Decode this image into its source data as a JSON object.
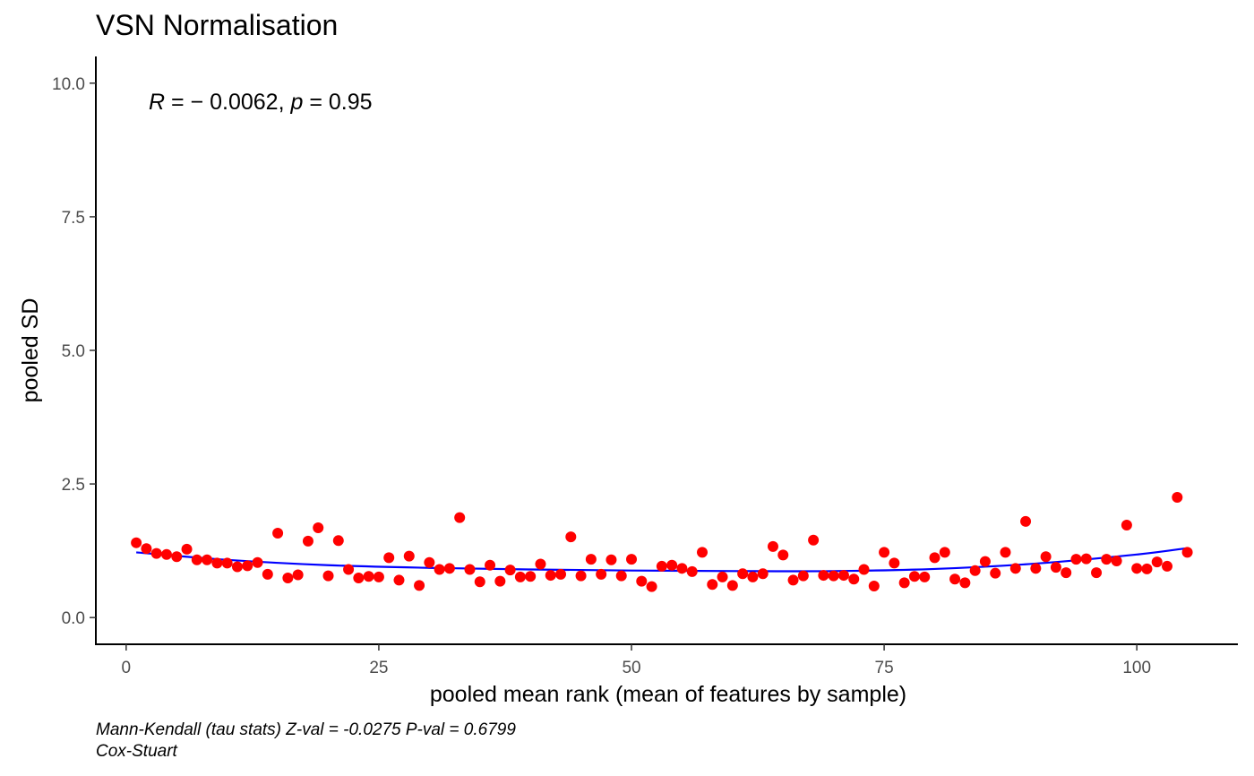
{
  "chart_data": {
    "type": "scatter",
    "title": "VSN Normalisation",
    "xlabel": "pooled mean rank (mean of features by sample)",
    "ylabel": "pooled SD",
    "xlim": [
      -3,
      110
    ],
    "ylim": [
      -0.5,
      10.5
    ],
    "xticks": [
      0,
      25,
      50,
      75,
      100
    ],
    "xtick_labels": [
      "0",
      "25",
      "50",
      "75",
      "100"
    ],
    "yticks": [
      0,
      2.5,
      5,
      7.5,
      10
    ],
    "ytick_labels": [
      "0.0",
      "2.5",
      "5.0",
      "7.5",
      "10.0"
    ],
    "grid": false,
    "annotation": {
      "r_symbol": "R",
      "r_text": " = − 0.0062, ",
      "p_symbol": "p",
      "p_text": " = 0.95"
    },
    "caption_lines": [
      "Mann-Kendall (tau stats) Z-val = -0.0275 P-val = 0.6799",
      "Cox-Stuart"
    ],
    "colors": {
      "points": "#ff0000",
      "trend": "#0000ff",
      "axis": "#000000"
    },
    "series": [
      {
        "kind": "points",
        "x": [
          1,
          2,
          3,
          4,
          5,
          6,
          7,
          8,
          9,
          10,
          11,
          12,
          13,
          14,
          15,
          16,
          17,
          18,
          19,
          20,
          21,
          22,
          23,
          24,
          25,
          26,
          27,
          28,
          29,
          30,
          31,
          32,
          33,
          34,
          35,
          36,
          37,
          38,
          39,
          40,
          41,
          42,
          43,
          44,
          45,
          46,
          47,
          48,
          49,
          50,
          51,
          52,
          53,
          54,
          55,
          56,
          57,
          58,
          59,
          60,
          61,
          62,
          63,
          64,
          65,
          66,
          67,
          68,
          69,
          70,
          71,
          72,
          73,
          74,
          75,
          76,
          77,
          78,
          79,
          80,
          81,
          82,
          83,
          84,
          85,
          86,
          87,
          88,
          89,
          90,
          91,
          92,
          93,
          94,
          95,
          96,
          97,
          98,
          99,
          100,
          101,
          102,
          103,
          104,
          105
        ],
        "y": [
          1.4,
          1.29,
          1.2,
          1.18,
          1.14,
          1.28,
          1.08,
          1.08,
          1.02,
          1.02,
          0.95,
          0.97,
          1.03,
          0.81,
          1.58,
          0.74,
          0.8,
          1.43,
          1.68,
          0.78,
          1.44,
          0.9,
          0.74,
          0.77,
          0.76,
          1.12,
          0.7,
          1.15,
          0.6,
          1.03,
          0.9,
          0.92,
          1.87,
          0.9,
          0.67,
          0.98,
          0.68,
          0.89,
          0.76,
          0.77,
          1.0,
          0.79,
          0.81,
          1.51,
          0.78,
          1.09,
          0.81,
          1.08,
          0.78,
          1.09,
          0.68,
          0.58,
          0.96,
          0.98,
          0.92,
          0.86,
          1.22,
          0.62,
          0.76,
          0.6,
          0.82,
          0.76,
          0.82,
          1.33,
          1.17,
          0.7,
          0.78,
          1.45,
          0.79,
          0.78,
          0.79,
          0.72,
          0.9,
          0.59,
          1.22,
          1.02,
          0.65,
          0.77,
          0.76,
          1.12,
          1.22,
          0.72,
          0.65,
          0.88,
          1.05,
          0.83,
          1.22,
          0.92,
          1.8,
          0.92,
          1.14,
          0.94,
          0.84,
          1.09,
          1.1,
          0.84,
          1.09,
          1.06,
          1.73,
          0.92,
          0.91,
          1.04,
          0.96,
          2.25,
          1.22
        ]
      },
      {
        "kind": "trend",
        "x": [
          1,
          10,
          20,
          30,
          40,
          50,
          60,
          70,
          80,
          90,
          100,
          105
        ],
        "y": [
          1.22,
          1.08,
          0.98,
          0.93,
          0.9,
          0.88,
          0.87,
          0.87,
          0.91,
          1.01,
          1.18,
          1.3
        ]
      }
    ]
  }
}
